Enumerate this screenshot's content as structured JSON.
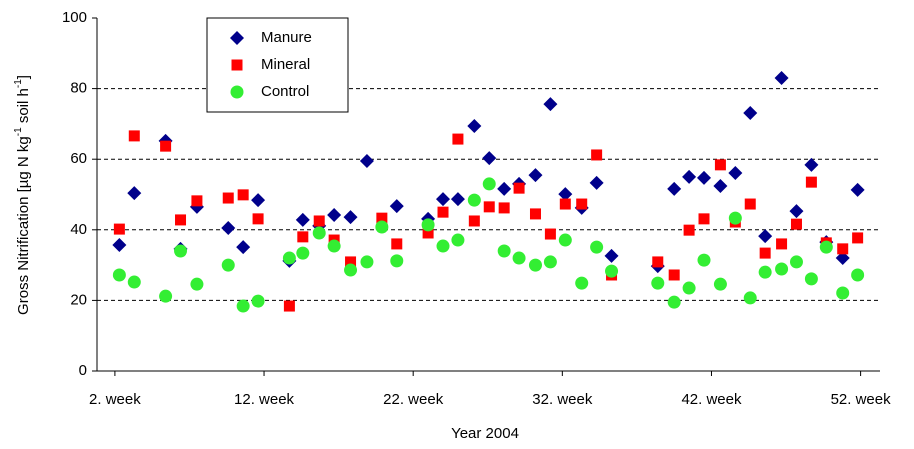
{
  "chart_data": {
    "type": "scatter",
    "x_label": "Year 2004",
    "y_label": [
      "Gross Nitrification [µg N kg",
      "-1",
      " soil h",
      "-1",
      "]"
    ],
    "xlim": [
      0.8,
      53.3
    ],
    "xticks": [
      {
        "value": 2,
        "label": "2. week"
      },
      {
        "value": 12,
        "label": "12. week"
      },
      {
        "value": 22,
        "label": "22. week"
      },
      {
        "value": 32,
        "label": "32. week"
      },
      {
        "value": 42,
        "label": "42. week"
      },
      {
        "value": 52,
        "label": "52. week"
      }
    ],
    "ylim": [
      0,
      100
    ],
    "yticks": [
      0,
      20,
      40,
      60,
      80,
      100
    ],
    "grid": true,
    "legend": "upper left",
    "series": [
      {
        "name": "Manure",
        "color": "#00008b",
        "marker": "diamond",
        "x": [
          2.3,
          3.3,
          5.4,
          6.4,
          7.5,
          9.6,
          10.6,
          11.6,
          13.7,
          14.6,
          15.7,
          16.7,
          17.8,
          18.9,
          20.9,
          23.0,
          24.0,
          25.0,
          26.1,
          27.1,
          28.1,
          29.1,
          30.2,
          31.2,
          32.2,
          33.3,
          34.3,
          35.3,
          38.4,
          39.5,
          40.5,
          41.5,
          42.6,
          43.6,
          44.6,
          45.6,
          46.7,
          47.7,
          48.7,
          49.7,
          50.8,
          51.8
        ],
        "values": [
          35.7,
          50.4,
          65.2,
          34.6,
          46.5,
          40.5,
          35.1,
          48.4,
          31.2,
          42.8,
          41.1,
          44.2,
          43.6,
          59.5,
          46.7,
          43.1,
          48.7,
          48.7,
          69.4,
          60.3,
          51.6,
          53.0,
          55.5,
          75.6,
          50.1,
          46.2,
          53.3,
          32.6,
          29.7,
          51.6,
          55.0,
          54.7,
          52.4,
          56.1,
          73.1,
          38.2,
          83.0,
          45.3,
          58.4,
          36.5,
          32.0,
          51.3
        ]
      },
      {
        "name": "Mineral",
        "color": "#ff0000",
        "marker": "square",
        "x": [
          2.3,
          3.3,
          5.4,
          6.4,
          7.5,
          9.6,
          10.6,
          11.6,
          13.7,
          14.6,
          15.7,
          16.7,
          17.8,
          19.9,
          20.9,
          23.0,
          24.0,
          25.0,
          26.1,
          27.1,
          28.1,
          29.1,
          30.2,
          31.2,
          32.2,
          33.3,
          34.3,
          35.3,
          38.4,
          39.5,
          40.5,
          41.5,
          42.6,
          43.6,
          44.6,
          45.6,
          46.7,
          47.7,
          48.7,
          49.7,
          50.8,
          51.8
        ],
        "values": [
          40.2,
          66.6,
          63.7,
          42.8,
          48.2,
          49.0,
          49.9,
          43.1,
          18.4,
          38.0,
          42.5,
          37.1,
          30.9,
          43.3,
          36.0,
          39.1,
          45.0,
          65.7,
          42.5,
          46.5,
          46.2,
          51.8,
          44.5,
          38.8,
          47.3,
          47.3,
          61.2,
          27.2,
          30.9,
          27.2,
          39.9,
          43.1,
          58.4,
          42.2,
          47.3,
          33.4,
          36.0,
          41.6,
          53.5,
          36.3,
          34.6,
          37.7
        ]
      },
      {
        "name": "Control",
        "color": "#33ee33",
        "marker": "circle",
        "x": [
          2.3,
          3.3,
          5.4,
          6.4,
          7.5,
          9.6,
          10.6,
          11.6,
          13.7,
          14.6,
          15.7,
          16.7,
          17.8,
          18.9,
          19.9,
          20.9,
          23.0,
          24.0,
          25.0,
          26.1,
          27.1,
          28.1,
          29.1,
          30.2,
          31.2,
          32.2,
          33.3,
          34.3,
          35.3,
          38.4,
          39.5,
          40.5,
          41.5,
          42.6,
          43.6,
          44.6,
          45.6,
          46.7,
          47.7,
          48.7,
          49.7,
          50.8,
          51.8
        ],
        "values": [
          27.2,
          25.2,
          21.2,
          34.0,
          24.6,
          30.0,
          18.4,
          19.8,
          32.0,
          33.4,
          39.1,
          35.4,
          28.6,
          30.9,
          40.8,
          31.2,
          41.4,
          35.4,
          37.1,
          48.4,
          53.0,
          34.0,
          32.0,
          30.0,
          30.9,
          37.1,
          24.9,
          35.1,
          28.3,
          24.9,
          19.5,
          23.5,
          31.4,
          24.6,
          43.3,
          20.7,
          28.0,
          28.9,
          30.9,
          26.1,
          35.1,
          22.1,
          27.2
        ]
      }
    ]
  }
}
